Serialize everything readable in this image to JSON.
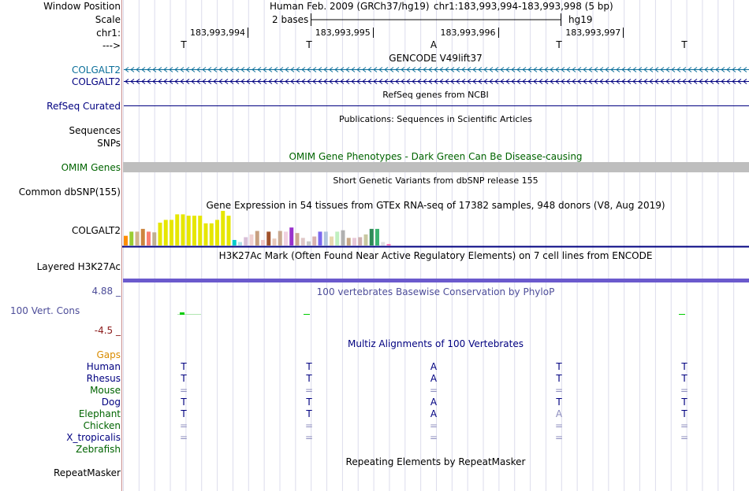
{
  "header": {
    "window_position_label": "Window Position",
    "scale_label": "Scale",
    "chrom_label": "chr1:",
    "strand_label": "--->",
    "assembly_text": "Human Feb. 2009 (GRCh37/hg19)",
    "position_text": "chr1:183,993,994-183,993,998 (5 bp)",
    "scale_text": "2 bases",
    "scale_db": "hg19",
    "coordinates": [
      "183,993,994",
      "183,993,995",
      "183,993,996",
      "183,993,997"
    ],
    "bases": [
      "T",
      "T",
      "A",
      "T",
      "T"
    ]
  },
  "tracks": {
    "gencode": {
      "title": "GENCODE V49lift37",
      "genes": [
        "COLGALT2",
        "COLGALT2"
      ]
    },
    "refseq": {
      "title": "RefSeq genes from NCBI",
      "label": "RefSeq Curated"
    },
    "publications": {
      "title": "Publications: Sequences in Scientific Articles",
      "labels": [
        "Sequences",
        "SNPs"
      ]
    },
    "omim": {
      "title": "OMIM Gene Phenotypes - Dark Green Can Be Disease-causing",
      "label": "OMIM Genes"
    },
    "dbsnp": {
      "title": "Short Genetic Variants from dbSNP release 155",
      "label": "Common dbSNP(155)"
    },
    "gtex": {
      "title": "Gene Expression in 54 tissues from GTEx RNA-seq of 17382 samples, 948 donors (V8, Aug 2019)",
      "label": "COLGALT2"
    },
    "h3k27ac": {
      "title": "H3K27Ac Mark (Often Found Near Active Regulatory Elements) on 7 cell lines from ENCODE",
      "label": "Layered H3K27Ac"
    },
    "phylop": {
      "title": "100 vertebrates Basewise Conservation by PhyloP",
      "label": "100 Vert. Cons",
      "max_label": "4.88 _",
      "min_label": "-4.5 _"
    },
    "multiz": {
      "title": "Multiz Alignments of 100 Vertebrates",
      "gaps_label": "Gaps",
      "species": [
        {
          "name": "Human",
          "bases": [
            "T",
            "T",
            "A",
            "T",
            "T"
          ]
        },
        {
          "name": "Rhesus",
          "bases": [
            "T",
            "T",
            "A",
            "T",
            "T"
          ]
        },
        {
          "name": "Mouse",
          "bases": [
            "=",
            "=",
            "=",
            "=",
            "="
          ]
        },
        {
          "name": "Dog",
          "bases": [
            "T",
            "T",
            "A",
            "T",
            "T"
          ]
        },
        {
          "name": "Elephant",
          "bases": [
            "T",
            "T",
            "A",
            "A",
            "T"
          ]
        },
        {
          "name": "Chicken",
          "bases": [
            "=",
            "=",
            "=",
            "=",
            "="
          ]
        },
        {
          "name": "X_tropicalis",
          "bases": [
            "=",
            "=",
            "=",
            "=",
            "="
          ]
        },
        {
          "name": "Zebrafish",
          "bases": [
            "",
            "",
            "",
            "",
            ""
          ]
        }
      ]
    },
    "repeatmasker": {
      "title": "Repeating Elements by RepeatMasker",
      "label": "RepeatMasker"
    }
  },
  "colors": {
    "navy": "#000080",
    "gencode_blue": "#0a6e99",
    "omim_green": "#006400",
    "phylop_blue": "#4d4d99",
    "phylop_red": "#8b1a1a",
    "gaps_orange": "#d98c00",
    "separator": "#c98c8c",
    "grid": "#c8c8e6",
    "omim_bar": "#bebebe",
    "conservation_green": "#00cc00",
    "chain_purple": "#6b5acd"
  },
  "gtex_bars": [
    {
      "color": "#ff8c00",
      "value": 0.28
    },
    {
      "color": "#9acd32",
      "value": 0.4
    },
    {
      "color": "#d2b48c",
      "value": 0.4
    },
    {
      "color": "#cd853f",
      "value": 0.48
    },
    {
      "color": "#fa8072",
      "value": 0.4
    },
    {
      "color": "#c0b090",
      "value": 0.38
    },
    {
      "color": "#e6e600",
      "value": 0.66
    },
    {
      "color": "#e6e600",
      "value": 0.74
    },
    {
      "color": "#e6e600",
      "value": 0.74
    },
    {
      "color": "#e6e600",
      "value": 0.9
    },
    {
      "color": "#e6e600",
      "value": 0.9
    },
    {
      "color": "#e6e600",
      "value": 0.86
    },
    {
      "color": "#e6e600",
      "value": 0.86
    },
    {
      "color": "#e6e600",
      "value": 0.86
    },
    {
      "color": "#e6e600",
      "value": 0.64
    },
    {
      "color": "#e6e600",
      "value": 0.64
    },
    {
      "color": "#e6e600",
      "value": 0.74
    },
    {
      "color": "#e6e600",
      "value": 1.0
    },
    {
      "color": "#e6e600",
      "value": 0.86
    },
    {
      "color": "#00cccc",
      "value": 0.16
    },
    {
      "color": "#b0e0e6",
      "value": 0.1
    },
    {
      "color": "#d8bfd8",
      "value": 0.24
    },
    {
      "color": "#f0d0d0",
      "value": 0.32
    },
    {
      "color": "#c8a080",
      "value": 0.42
    },
    {
      "color": "#f0c8c8",
      "value": 0.16
    },
    {
      "color": "#a0522d",
      "value": 0.4
    },
    {
      "color": "#e8c8b8",
      "value": 0.2
    },
    {
      "color": "#c8a890",
      "value": 0.42
    },
    {
      "color": "#f0d0e0",
      "value": 0.4
    },
    {
      "color": "#9932cc",
      "value": 0.52
    },
    {
      "color": "#cca890",
      "value": 0.36
    },
    {
      "color": "#e0c8c8",
      "value": 0.22
    },
    {
      "color": "#c8c8c8",
      "value": 0.12
    },
    {
      "color": "#d8b0b0",
      "value": 0.26
    },
    {
      "color": "#7b68ee",
      "value": 0.4
    },
    {
      "color": "#b0c4de",
      "value": 0.4
    },
    {
      "color": "#e8d8b0",
      "value": 0.26
    },
    {
      "color": "#c0f0c0",
      "value": 0.4
    },
    {
      "color": "#b0b0b0",
      "value": 0.44
    },
    {
      "color": "#c8a888",
      "value": 0.22
    },
    {
      "color": "#e8c8d8",
      "value": 0.22
    },
    {
      "color": "#d0b0b0",
      "value": 0.24
    },
    {
      "color": "#c8c8a0",
      "value": 0.32
    },
    {
      "color": "#2e8b57",
      "value": 0.48
    },
    {
      "color": "#3cb371",
      "value": 0.48
    },
    {
      "color": "#e0e0e0",
      "value": 0.1
    },
    {
      "color": "#ff69b4",
      "value": 0.04
    }
  ]
}
